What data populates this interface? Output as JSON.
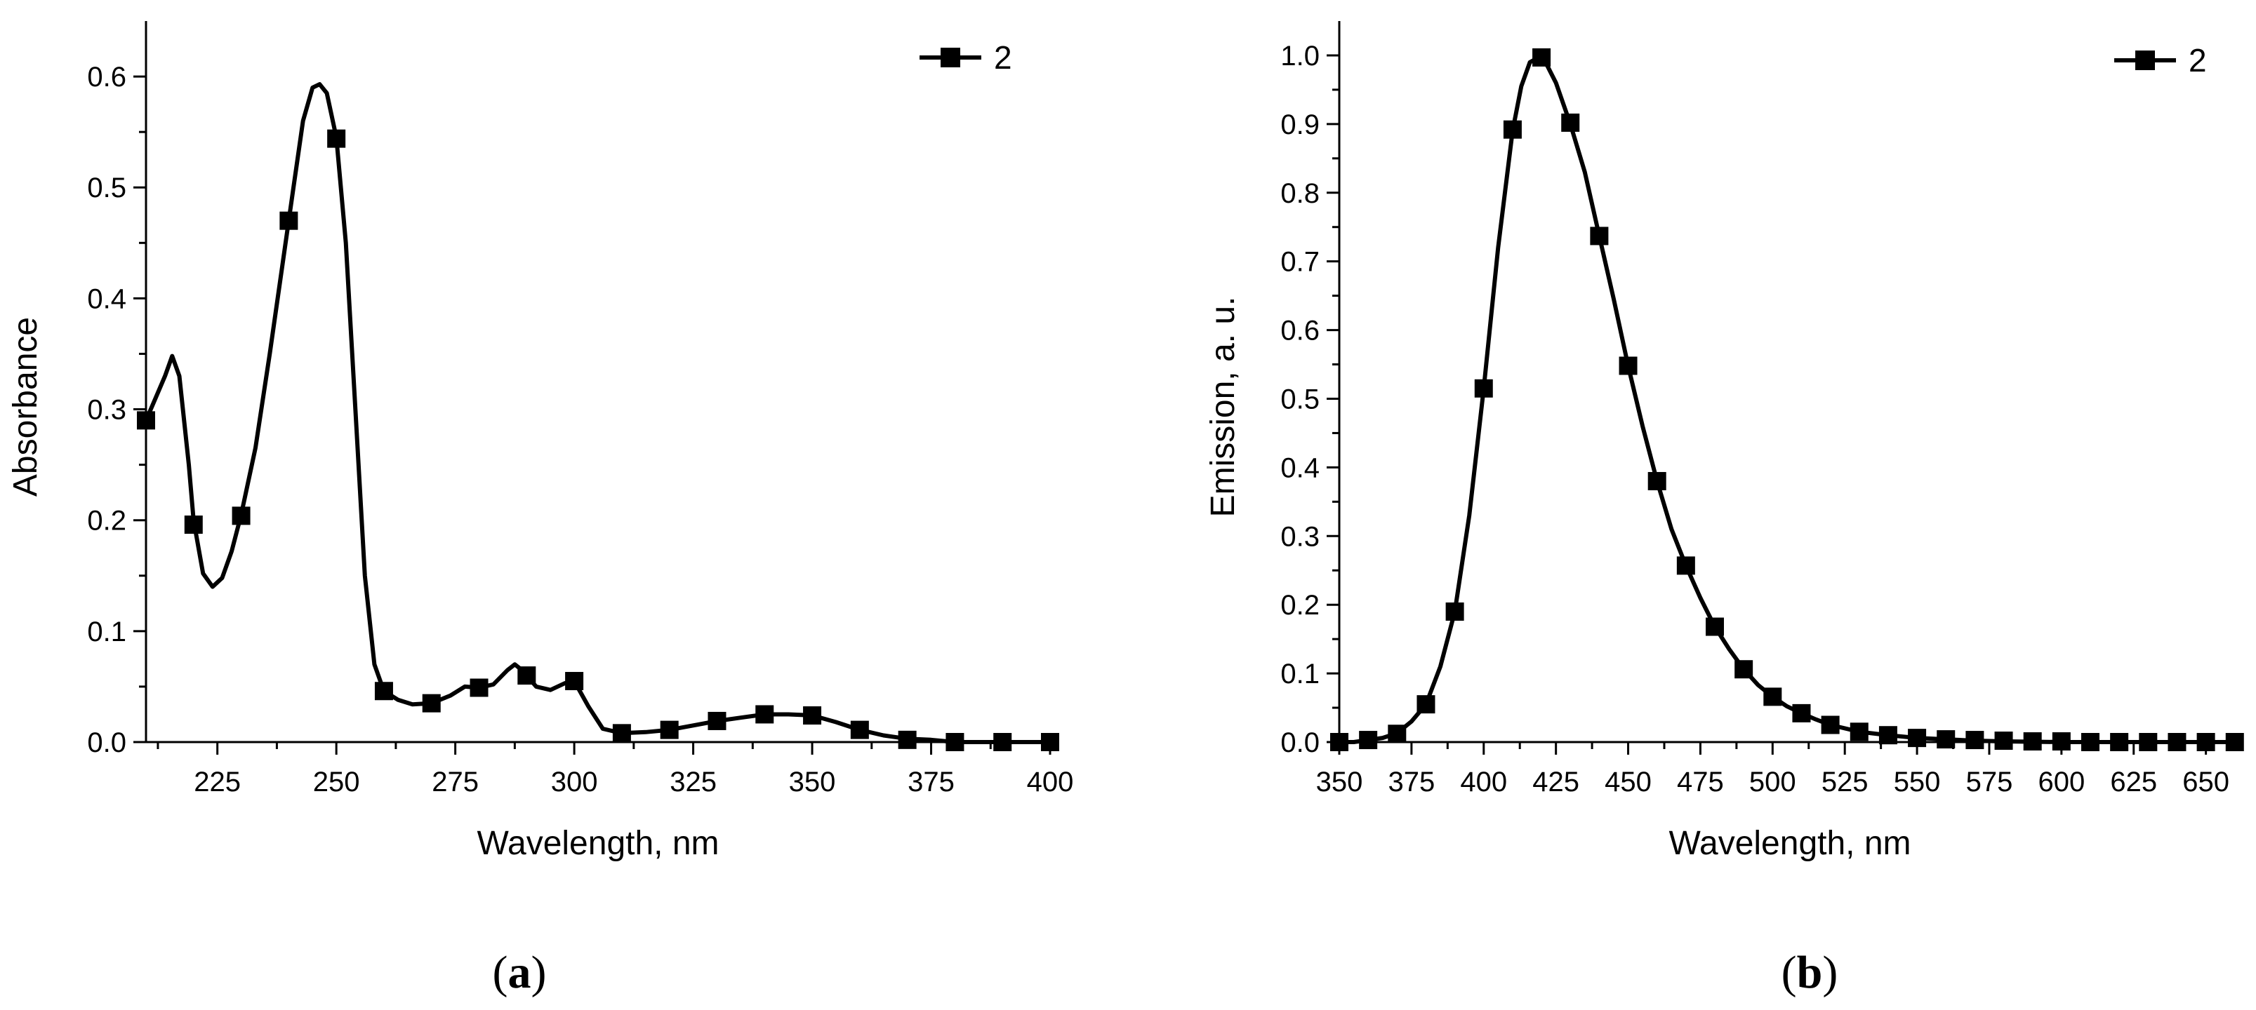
{
  "chart_data": [
    {
      "type": "line",
      "panel_label": {
        "open": "(",
        "letter": "a",
        "close": ")"
      },
      "xlabel": "Wavelength, nm",
      "ylabel": "Absorbance",
      "xlim": [
        210,
        400
      ],
      "ylim": [
        0.0,
        0.65
      ],
      "x_ticks": [
        225,
        250,
        275,
        300,
        325,
        350,
        375,
        400
      ],
      "x_tick_labels": [
        "225",
        "250",
        "275",
        "300",
        "325",
        "350",
        "375",
        "400"
      ],
      "y_ticks": [
        0.0,
        0.1,
        0.2,
        0.3,
        0.4,
        0.5,
        0.6
      ],
      "y_tick_labels": [
        "0.0",
        "0.1",
        "0.2",
        "0.3",
        "0.4",
        "0.5",
        "0.6"
      ],
      "legend": {
        "position": "top-right",
        "entries": [
          "2"
        ]
      },
      "series": [
        {
          "name": "2",
          "marker": "filled-square",
          "line": [
            [
              210,
              0.29
            ],
            [
              212,
              0.31
            ],
            [
              214,
              0.33
            ],
            [
              215.5,
              0.348
            ],
            [
              217,
              0.33
            ],
            [
              219,
              0.25
            ],
            [
              220,
              0.2
            ],
            [
              222,
              0.152
            ],
            [
              224,
              0.14
            ],
            [
              226,
              0.148
            ],
            [
              228,
              0.172
            ],
            [
              230,
              0.205
            ],
            [
              233,
              0.265
            ],
            [
              236,
              0.35
            ],
            [
              239,
              0.44
            ],
            [
              241,
              0.5
            ],
            [
              243,
              0.56
            ],
            [
              245,
              0.59
            ],
            [
              246.5,
              0.593
            ],
            [
              248,
              0.585
            ],
            [
              250,
              0.545
            ],
            [
              252,
              0.45
            ],
            [
              254,
              0.3
            ],
            [
              256,
              0.15
            ],
            [
              258,
              0.07
            ],
            [
              260,
              0.046
            ],
            [
              263,
              0.038
            ],
            [
              266,
              0.034
            ],
            [
              270,
              0.035
            ],
            [
              274,
              0.042
            ],
            [
              277,
              0.05
            ],
            [
              280,
              0.049
            ],
            [
              283,
              0.052
            ],
            [
              286,
              0.065
            ],
            [
              287.5,
              0.07
            ],
            [
              289,
              0.065
            ],
            [
              290,
              0.06
            ],
            [
              292,
              0.05
            ],
            [
              295,
              0.047
            ],
            [
              298,
              0.053
            ],
            [
              300,
              0.055
            ],
            [
              303,
              0.032
            ],
            [
              306,
              0.012
            ],
            [
              310,
              0.008
            ],
            [
              315,
              0.009
            ],
            [
              320,
              0.011
            ],
            [
              325,
              0.015
            ],
            [
              330,
              0.019
            ],
            [
              335,
              0.022
            ],
            [
              340,
              0.025
            ],
            [
              345,
              0.025
            ],
            [
              350,
              0.024
            ],
            [
              355,
              0.018
            ],
            [
              360,
              0.011
            ],
            [
              365,
              0.006
            ],
            [
              370,
              0.003
            ],
            [
              375,
              0.002
            ],
            [
              380,
              0.0
            ],
            [
              390,
              0.0
            ],
            [
              400,
              0.0
            ]
          ],
          "markers": [
            [
              210,
              0.29
            ],
            [
              220,
              0.196
            ],
            [
              230,
              0.204
            ],
            [
              240,
              0.47
            ],
            [
              250,
              0.544
            ],
            [
              260,
              0.046
            ],
            [
              270,
              0.035
            ],
            [
              280,
              0.049
            ],
            [
              290,
              0.06
            ],
            [
              300,
              0.055
            ],
            [
              310,
              0.008
            ],
            [
              320,
              0.011
            ],
            [
              330,
              0.019
            ],
            [
              340,
              0.025
            ],
            [
              350,
              0.024
            ],
            [
              360,
              0.011
            ],
            [
              370,
              0.002
            ],
            [
              380,
              0.0
            ],
            [
              390,
              0.0
            ],
            [
              400,
              0.0
            ]
          ]
        }
      ]
    },
    {
      "type": "line",
      "panel_label": {
        "open": "(",
        "letter": "b",
        "close": ")"
      },
      "xlabel": "Wavelength, nm",
      "ylabel": "Emission, a. u.",
      "xlim": [
        350,
        662
      ],
      "ylim": [
        0.0,
        1.05
      ],
      "x_ticks": [
        350,
        375,
        400,
        425,
        450,
        475,
        500,
        525,
        550,
        575,
        600,
        625,
        650
      ],
      "x_tick_labels": [
        "350",
        "375",
        "400",
        "425",
        "450",
        "475",
        "500",
        "525",
        "550",
        "575",
        "600",
        "625",
        "650"
      ],
      "y_ticks": [
        0.0,
        0.1,
        0.2,
        0.3,
        0.4,
        0.5,
        0.6,
        0.7,
        0.8,
        0.9,
        1.0
      ],
      "y_tick_labels": [
        "0.0",
        "0.1",
        "0.2",
        "0.3",
        "0.4",
        "0.5",
        "0.6",
        "0.7",
        "0.8",
        "0.9",
        "1.0"
      ],
      "legend": {
        "position": "top-right",
        "entries": [
          "2"
        ]
      },
      "series": [
        {
          "name": "2",
          "marker": "filled-square",
          "line": [
            [
              350,
              0.0
            ],
            [
              355,
              0.0
            ],
            [
              360,
              0.003
            ],
            [
              365,
              0.006
            ],
            [
              370,
              0.013
            ],
            [
              375,
              0.03
            ],
            [
              380,
              0.055
            ],
            [
              385,
              0.11
            ],
            [
              390,
              0.19
            ],
            [
              395,
              0.33
            ],
            [
              400,
              0.515
            ],
            [
              405,
              0.72
            ],
            [
              410,
              0.89
            ],
            [
              413,
              0.955
            ],
            [
              416,
              0.99
            ],
            [
              419,
              0.997
            ],
            [
              422,
              0.985
            ],
            [
              425,
              0.96
            ],
            [
              430,
              0.9
            ],
            [
              435,
              0.83
            ],
            [
              440,
              0.737
            ],
            [
              445,
              0.645
            ],
            [
              450,
              0.548
            ],
            [
              455,
              0.46
            ],
            [
              460,
              0.38
            ],
            [
              465,
              0.31
            ],
            [
              470,
              0.257
            ],
            [
              475,
              0.21
            ],
            [
              480,
              0.168
            ],
            [
              485,
              0.135
            ],
            [
              490,
              0.106
            ],
            [
              495,
              0.083
            ],
            [
              500,
              0.066
            ],
            [
              505,
              0.052
            ],
            [
              510,
              0.042
            ],
            [
              515,
              0.033
            ],
            [
              520,
              0.025
            ],
            [
              530,
              0.015
            ],
            [
              540,
              0.01
            ],
            [
              550,
              0.006
            ],
            [
              560,
              0.004
            ],
            [
              570,
              0.002
            ],
            [
              580,
              0.001
            ],
            [
              600,
              0.0
            ],
            [
              620,
              0.0
            ],
            [
              640,
              0.0
            ],
            [
              660,
              0.0
            ]
          ],
          "markers": [
            [
              350,
              0.0
            ],
            [
              360,
              0.003
            ],
            [
              370,
              0.012
            ],
            [
              380,
              0.055
            ],
            [
              390,
              0.19
            ],
            [
              400,
              0.515
            ],
            [
              410,
              0.892
            ],
            [
              420,
              0.997
            ],
            [
              430,
              0.902
            ],
            [
              440,
              0.737
            ],
            [
              450,
              0.548
            ],
            [
              460,
              0.38
            ],
            [
              470,
              0.257
            ],
            [
              480,
              0.168
            ],
            [
              490,
              0.106
            ],
            [
              500,
              0.066
            ],
            [
              510,
              0.042
            ],
            [
              520,
              0.025
            ],
            [
              530,
              0.015
            ],
            [
              540,
              0.01
            ],
            [
              550,
              0.006
            ],
            [
              560,
              0.004
            ],
            [
              570,
              0.003
            ],
            [
              580,
              0.002
            ],
            [
              590,
              0.001
            ],
            [
              600,
              0.001
            ],
            [
              610,
              0.0
            ],
            [
              620,
              0.0
            ],
            [
              630,
              0.0
            ],
            [
              640,
              0.0
            ],
            [
              650,
              0.0
            ],
            [
              660,
              0.0
            ]
          ]
        }
      ]
    }
  ]
}
